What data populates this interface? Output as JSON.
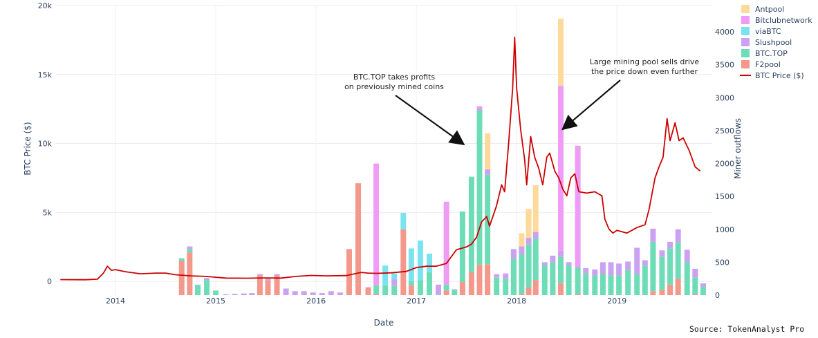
{
  "chart_data": {
    "type": "bar",
    "barmode": "stack",
    "xlabel": "Date",
    "y_left_label": "BTC Price ($)",
    "y_right_label": "Miner outflows",
    "y_left_range": [
      -1000,
      20000
    ],
    "y_right_range": [
      0,
      4400
    ],
    "y_left_ticks": [
      {
        "value": 0,
        "label": "0"
      },
      {
        "value": 5000,
        "label": "5k"
      },
      {
        "value": 10000,
        "label": "10k"
      },
      {
        "value": 15000,
        "label": "15k"
      },
      {
        "value": 20000,
        "label": "20k"
      }
    ],
    "y_right_ticks": [
      0,
      500,
      1000,
      1500,
      2000,
      2500,
      3000,
      3500,
      4000
    ],
    "x_range": [
      2013.4,
      2019.95
    ],
    "x_ticks": [
      {
        "value": 2014.0,
        "label": "2014"
      },
      {
        "value": 2015.0,
        "label": "2015"
      },
      {
        "value": 2016.0,
        "label": "2016"
      },
      {
        "value": 2017.0,
        "label": "2017"
      },
      {
        "value": 2018.0,
        "label": "2018"
      },
      {
        "value": 2019.0,
        "label": "2019"
      }
    ],
    "grid": true,
    "legend_position": "top-right",
    "legend": [
      {
        "name": "Antpool",
        "color": "#fdd99b",
        "kind": "bar"
      },
      {
        "name": "Bitclubnetwork",
        "color": "#ee9cf5",
        "kind": "bar"
      },
      {
        "name": "viaBTC",
        "color": "#7ae3f0",
        "kind": "bar"
      },
      {
        "name": "Slushpool",
        "color": "#cba2f2",
        "kind": "bar"
      },
      {
        "name": "BTC.TOP",
        "color": "#6fdcb8",
        "kind": "bar"
      },
      {
        "name": "F2pool",
        "color": "#f3988a",
        "kind": "bar"
      },
      {
        "name": "BTC Price ($)",
        "color": "#cc0000",
        "kind": "line"
      }
    ],
    "bars": [
      {
        "x": 2014.66,
        "F2pool": 520,
        "BTC.TOP": 40
      },
      {
        "x": 2014.74,
        "F2pool": 650,
        "BTC.TOP": 50,
        "Slushpool": 40
      },
      {
        "x": 2014.82,
        "BTC.TOP": 150,
        "Slushpool": 10
      },
      {
        "x": 2014.91,
        "BTC.TOP": 230,
        "Slushpool": 30
      },
      {
        "x": 2015.0,
        "BTC.TOP": 70
      },
      {
        "x": 2015.1,
        "Slushpool": 15
      },
      {
        "x": 2015.19,
        "Slushpool": 20
      },
      {
        "x": 2015.28,
        "Slushpool": 25
      },
      {
        "x": 2015.36,
        "Slushpool": 30
      },
      {
        "x": 2015.44,
        "F2pool": 300,
        "Slushpool": 20
      },
      {
        "x": 2015.52,
        "F2pool": 220,
        "Slushpool": 30
      },
      {
        "x": 2015.61,
        "F2pool": 300,
        "Slushpool": 20
      },
      {
        "x": 2015.7,
        "Slushpool": 100
      },
      {
        "x": 2015.79,
        "Slushpool": 60
      },
      {
        "x": 2015.88,
        "Slushpool": 60
      },
      {
        "x": 2015.97,
        "Slushpool": 40
      },
      {
        "x": 2016.06,
        "Slushpool": 30
      },
      {
        "x": 2016.15,
        "Slushpool": 60
      },
      {
        "x": 2016.24,
        "Slushpool": 40
      },
      {
        "x": 2016.33,
        "F2pool": 700
      },
      {
        "x": 2016.42,
        "F2pool": 1700
      },
      {
        "x": 2016.52,
        "F2pool": 120
      },
      {
        "x": 2016.6,
        "F2pool": 20,
        "BTC.TOP": 130,
        "Bitclubnetwork": 1850
      },
      {
        "x": 2016.69,
        "BTC.TOP": 150,
        "viaBTC": 300
      },
      {
        "x": 2016.78,
        "BTC.TOP": 140,
        "Slushpool": 100,
        "viaBTC": 90
      },
      {
        "x": 2016.87,
        "F2pool": 1000,
        "viaBTC": 250
      },
      {
        "x": 2016.95,
        "F2pool": 150,
        "BTC.TOP": 60,
        "viaBTC": 500
      },
      {
        "x": 2017.04,
        "BTC.TOP": 230,
        "viaBTC": 600
      },
      {
        "x": 2017.13,
        "BTC.TOP": 350,
        "viaBTC": 280
      },
      {
        "x": 2017.22,
        "BTC.TOP": 10,
        "Slushpool": 150
      },
      {
        "x": 2017.3,
        "F2pool": 70,
        "BTC.TOP": 90,
        "Bitclubnetwork": 1260
      },
      {
        "x": 2017.38,
        "BTC.TOP": 80,
        "Slushpool": 10
      },
      {
        "x": 2017.46,
        "F2pool": 200,
        "BTC.TOP": 1070
      },
      {
        "x": 2017.55,
        "F2pool": 350,
        "BTC.TOP": 1450
      },
      {
        "x": 2017.63,
        "F2pool": 460,
        "BTC.TOP": 2350,
        "Slushpool": 30,
        "Bitclubnetwork": 30
      },
      {
        "x": 2017.71,
        "F2pool": 470,
        "BTC.TOP": 1360,
        "Slushpool": 80,
        "Antpool": 550
      },
      {
        "x": 2017.8,
        "BTC.TOP": 270,
        "Slushpool": 50
      },
      {
        "x": 2017.89,
        "BTC.TOP": 250,
        "Slushpool": 80
      },
      {
        "x": 2017.97,
        "BTC.TOP": 550,
        "Slushpool": 150
      },
      {
        "x": 2018.05,
        "F2pool": 20,
        "BTC.TOP": 600,
        "Slushpool": 120,
        "Antpool": 200
      },
      {
        "x": 2018.12,
        "F2pool": 120,
        "BTC.TOP": 650,
        "Slushpool": 100,
        "Antpool": 440
      },
      {
        "x": 2018.19,
        "F2pool": 230,
        "BTC.TOP": 630,
        "Slushpool": 100,
        "Antpool": 710
      },
      {
        "x": 2018.28,
        "BTC.TOP": 450,
        "Slushpool": 50
      },
      {
        "x": 2018.36,
        "BTC.TOP": 500,
        "Slushpool": 100
      },
      {
        "x": 2018.44,
        "F2pool": 180,
        "BTC.TOP": 400,
        "Slushpool": 100,
        "Bitclubnetwork": 2500,
        "Antpool": 1020
      },
      {
        "x": 2018.52,
        "BTC.TOP": 450,
        "Slushpool": 50
      },
      {
        "x": 2018.61,
        "F2pool": 20,
        "BTC.TOP": 400,
        "Bitclubnetwork": 1850
      },
      {
        "x": 2018.69,
        "BTC.TOP": 330,
        "Slushpool": 80
      },
      {
        "x": 2018.78,
        "BTC.TOP": 300,
        "Slushpool": 90
      },
      {
        "x": 2018.86,
        "BTC.TOP": 320,
        "Slushpool": 180
      },
      {
        "x": 2018.94,
        "BTC.TOP": 300,
        "Slushpool": 200
      },
      {
        "x": 2019.02,
        "BTC.TOP": 300,
        "Slushpool": 180
      },
      {
        "x": 2019.11,
        "BTC.TOP": 380,
        "Slushpool": 130
      },
      {
        "x": 2019.2,
        "BTC.TOP": 320,
        "Slushpool": 400
      },
      {
        "x": 2019.28,
        "BTC.TOP": 450,
        "Slushpool": 80
      },
      {
        "x": 2019.36,
        "F2pool": 60,
        "BTC.TOP": 750,
        "Slushpool": 200
      },
      {
        "x": 2019.45,
        "F2pool": 80,
        "BTC.TOP": 500,
        "Slushpool": 100
      },
      {
        "x": 2019.53,
        "F2pool": 160,
        "BTC.TOP": 550,
        "Slushpool": 100
      },
      {
        "x": 2019.61,
        "F2pool": 250,
        "BTC.TOP": 550,
        "Slushpool": 200
      },
      {
        "x": 2019.7,
        "BTC.TOP": 500,
        "Slushpool": 190
      },
      {
        "x": 2019.78,
        "F2pool": 20,
        "BTC.TOP": 250,
        "Slushpool": 130
      },
      {
        "x": 2019.86,
        "BTC.TOP": 130,
        "Slushpool": 50
      }
    ],
    "price": [
      [
        2013.45,
        130
      ],
      [
        2013.7,
        120
      ],
      [
        2013.82,
        160
      ],
      [
        2013.88,
        600
      ],
      [
        2013.92,
        1100
      ],
      [
        2013.96,
        800
      ],
      [
        2014.0,
        850
      ],
      [
        2014.1,
        700
      ],
      [
        2014.25,
        550
      ],
      [
        2014.4,
        600
      ],
      [
        2014.5,
        600
      ],
      [
        2014.6,
        480
      ],
      [
        2014.75,
        400
      ],
      [
        2014.9,
        360
      ],
      [
        2015.0,
        300
      ],
      [
        2015.1,
        240
      ],
      [
        2015.3,
        230
      ],
      [
        2015.5,
        250
      ],
      [
        2015.65,
        240
      ],
      [
        2015.8,
        360
      ],
      [
        2015.95,
        430
      ],
      [
        2016.1,
        400
      ],
      [
        2016.3,
        420
      ],
      [
        2016.45,
        650
      ],
      [
        2016.52,
        600
      ],
      [
        2016.6,
        580
      ],
      [
        2016.75,
        620
      ],
      [
        2016.9,
        720
      ],
      [
        2017.0,
        1000
      ],
      [
        2017.1,
        1100
      ],
      [
        2017.2,
        1100
      ],
      [
        2017.3,
        1300
      ],
      [
        2017.4,
        2300
      ],
      [
        2017.5,
        2500
      ],
      [
        2017.55,
        2700
      ],
      [
        2017.6,
        3200
      ],
      [
        2017.65,
        4300
      ],
      [
        2017.7,
        4700
      ],
      [
        2017.73,
        4000
      ],
      [
        2017.8,
        5500
      ],
      [
        2017.85,
        7000
      ],
      [
        2017.88,
        6500
      ],
      [
        2017.92,
        10000
      ],
      [
        2017.96,
        14000
      ],
      [
        2017.98,
        17700
      ],
      [
        2018.0,
        14000
      ],
      [
        2018.04,
        11000
      ],
      [
        2018.08,
        8800
      ],
      [
        2018.1,
        7000
      ],
      [
        2018.14,
        10500
      ],
      [
        2018.18,
        9000
      ],
      [
        2018.22,
        8200
      ],
      [
        2018.26,
        7000
      ],
      [
        2018.3,
        9000
      ],
      [
        2018.33,
        9300
      ],
      [
        2018.38,
        8000
      ],
      [
        2018.42,
        7500
      ],
      [
        2018.46,
        6700
      ],
      [
        2018.5,
        6200
      ],
      [
        2018.54,
        7500
      ],
      [
        2018.58,
        7800
      ],
      [
        2018.62,
        6500
      ],
      [
        2018.7,
        6400
      ],
      [
        2018.78,
        6500
      ],
      [
        2018.85,
        6200
      ],
      [
        2018.88,
        4500
      ],
      [
        2018.92,
        3800
      ],
      [
        2018.96,
        3500
      ],
      [
        2019.0,
        3700
      ],
      [
        2019.1,
        3500
      ],
      [
        2019.2,
        3900
      ],
      [
        2019.28,
        4100
      ],
      [
        2019.32,
        5200
      ],
      [
        2019.38,
        7500
      ],
      [
        2019.42,
        8300
      ],
      [
        2019.46,
        9000
      ],
      [
        2019.5,
        11800
      ],
      [
        2019.53,
        10200
      ],
      [
        2019.58,
        11500
      ],
      [
        2019.62,
        10200
      ],
      [
        2019.66,
        10400
      ],
      [
        2019.72,
        9500
      ],
      [
        2019.78,
        8300
      ],
      [
        2019.83,
        8000
      ]
    ],
    "annotations": [
      {
        "lines": [
          "BTC.TOP takes profits",
          "on previously mined coins"
        ],
        "arrow_to": [
          2017.46,
          10000
        ]
      },
      {
        "lines": [
          "Large mining pool sells drive",
          "the price down even further"
        ],
        "arrow_to": [
          2018.47,
          11100
        ]
      }
    ]
  },
  "source": "Source: TokenAnalyst Pro"
}
